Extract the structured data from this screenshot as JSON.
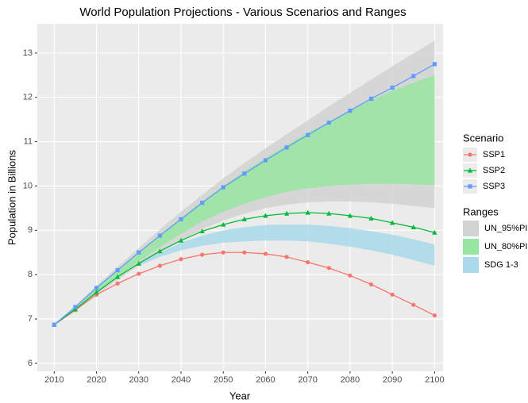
{
  "chart_data": {
    "type": "line",
    "title": "World Population Projections - Various Scenarios and Ranges",
    "x_label": "Year",
    "y_label": "Population in Billions",
    "x": [
      2010,
      2015,
      2020,
      2025,
      2030,
      2035,
      2040,
      2045,
      2050,
      2055,
      2060,
      2065,
      2070,
      2075,
      2080,
      2085,
      2090,
      2095,
      2100
    ],
    "xlim": [
      2006,
      2102
    ],
    "xticks": [
      2010,
      2020,
      2030,
      2040,
      2050,
      2060,
      2070,
      2080,
      2090,
      2100
    ],
    "ylim": [
      5.82,
      13.66
    ],
    "yticks": [
      6,
      7,
      8,
      9,
      10,
      11,
      12,
      13
    ],
    "grid": true,
    "series_legend_title": "Scenario",
    "series": [
      {
        "name": "SSP1",
        "color": "#F8766D",
        "marker": "circle",
        "values": [
          6.87,
          7.2,
          7.55,
          7.8,
          8.02,
          8.2,
          8.35,
          8.45,
          8.5,
          8.5,
          8.47,
          8.4,
          8.28,
          8.15,
          7.98,
          7.78,
          7.55,
          7.32,
          7.08
        ]
      },
      {
        "name": "SSP2",
        "color": "#00BA38",
        "marker": "triangle",
        "values": [
          6.87,
          7.22,
          7.6,
          7.95,
          8.25,
          8.53,
          8.77,
          8.98,
          9.13,
          9.25,
          9.33,
          9.38,
          9.4,
          9.38,
          9.33,
          9.27,
          9.17,
          9.07,
          8.95
        ]
      },
      {
        "name": "SSP3",
        "color": "#619CFF",
        "marker": "square",
        "values": [
          6.87,
          7.27,
          7.7,
          8.1,
          8.5,
          8.88,
          9.25,
          9.62,
          9.97,
          10.28,
          10.58,
          10.87,
          11.15,
          11.43,
          11.7,
          11.97,
          12.22,
          12.48,
          12.75
        ]
      }
    ],
    "ranges_legend_title": "Ranges",
    "ranges": [
      {
        "name": "UN_95%PI",
        "color": "#d2d2d2",
        "lower": [
          6.87,
          7.2,
          7.55,
          7.88,
          8.2,
          8.5,
          8.78,
          9.02,
          9.22,
          9.38,
          9.5,
          9.58,
          9.63,
          9.65,
          9.65,
          9.63,
          9.6,
          9.55,
          9.5
        ],
        "upper": [
          6.87,
          7.3,
          7.75,
          8.18,
          8.6,
          9.02,
          9.42,
          9.8,
          10.17,
          10.52,
          10.85,
          11.17,
          11.48,
          11.8,
          12.1,
          12.4,
          12.7,
          12.99,
          13.28
        ]
      },
      {
        "name": "UN_80%PI",
        "color": "#96e6a1",
        "lower": [
          6.87,
          7.22,
          7.6,
          7.95,
          8.3,
          8.62,
          8.92,
          9.2,
          9.42,
          9.6,
          9.75,
          9.87,
          9.95,
          10.0,
          10.03,
          10.05,
          10.05,
          10.04,
          10.02
        ],
        "upper": [
          6.87,
          7.28,
          7.7,
          8.1,
          8.5,
          8.9,
          9.28,
          9.65,
          10.0,
          10.33,
          10.63,
          10.92,
          11.2,
          11.45,
          11.7,
          11.93,
          12.15,
          12.33,
          12.5
        ]
      },
      {
        "name": "SDG 1-3",
        "color": "#a9d9ea",
        "lower": [
          null,
          null,
          null,
          null,
          8.2,
          8.4,
          8.55,
          8.65,
          8.72,
          8.75,
          8.77,
          8.77,
          8.75,
          8.7,
          8.63,
          8.55,
          8.45,
          8.33,
          8.2
        ],
        "upper": [
          null,
          null,
          null,
          null,
          8.28,
          8.5,
          8.72,
          8.88,
          9.0,
          9.07,
          9.12,
          9.13,
          9.13,
          9.1,
          9.05,
          8.98,
          8.9,
          8.8,
          8.68
        ]
      }
    ]
  }
}
